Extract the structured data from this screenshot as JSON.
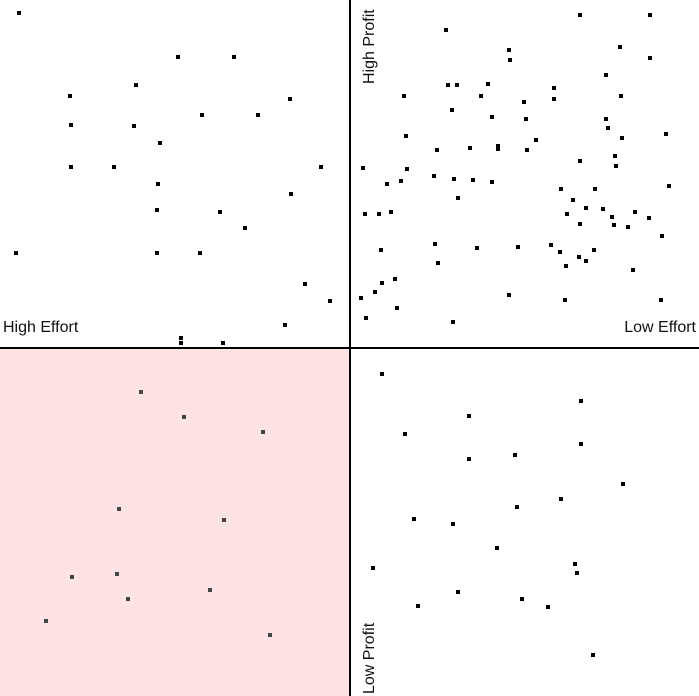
{
  "chart_data": {
    "type": "scatter",
    "x_axis": {
      "left_label": "High Effort",
      "right_label": "Low Effort",
      "xlim": [
        0,
        699
      ]
    },
    "y_axis": {
      "top_label": "High Profit",
      "bottom_label": "Low Profit",
      "ylim": [
        0,
        696
      ]
    },
    "highlighted_quadrant": "bottom-left",
    "colors": {
      "highlight": "#fde3e3",
      "axis": "#000000",
      "marker": "#000000",
      "marker_highlight": "#444444"
    },
    "series": [
      {
        "name": "top-left",
        "points": [
          [
            19,
            683
          ],
          [
            178,
            639
          ],
          [
            234,
            639
          ],
          [
            136,
            611
          ],
          [
            70,
            600
          ],
          [
            290,
            597
          ],
          [
            202,
            581
          ],
          [
            258,
            581
          ],
          [
            71,
            571
          ],
          [
            134,
            570
          ],
          [
            160,
            553
          ],
          [
            71,
            529
          ],
          [
            114,
            529
          ],
          [
            321,
            529
          ],
          [
            158,
            512
          ],
          [
            291,
            502
          ],
          [
            157,
            486
          ],
          [
            220,
            484
          ],
          [
            245,
            468
          ],
          [
            16,
            443
          ],
          [
            157,
            443
          ],
          [
            200,
            443
          ],
          [
            305,
            412
          ],
          [
            330,
            395
          ],
          [
            285,
            371
          ],
          [
            181,
            358
          ],
          [
            181,
            353
          ],
          [
            223,
            353
          ]
        ]
      },
      {
        "name": "top-right",
        "points": [
          [
            580,
            681
          ],
          [
            650,
            681
          ],
          [
            446,
            666
          ],
          [
            620,
            649
          ],
          [
            509,
            646
          ],
          [
            510,
            636
          ],
          [
            650,
            638
          ],
          [
            606,
            621
          ],
          [
            488,
            612
          ],
          [
            448,
            611
          ],
          [
            457,
            611
          ],
          [
            554,
            608
          ],
          [
            404,
            600
          ],
          [
            481,
            600
          ],
          [
            554,
            597
          ],
          [
            621,
            600
          ],
          [
            524,
            594
          ],
          [
            452,
            586
          ],
          [
            492,
            579
          ],
          [
            526,
            577
          ],
          [
            606,
            577
          ],
          [
            608,
            568
          ],
          [
            406,
            560
          ],
          [
            536,
            556
          ],
          [
            622,
            558
          ],
          [
            666,
            562
          ],
          [
            498,
            550
          ],
          [
            470,
            548
          ],
          [
            498,
            547
          ],
          [
            437,
            546
          ],
          [
            527,
            546
          ],
          [
            615,
            540
          ],
          [
            580,
            535
          ],
          [
            616,
            530
          ],
          [
            363,
            528
          ],
          [
            407,
            527
          ],
          [
            434,
            520
          ],
          [
            454,
            517
          ],
          [
            401,
            515
          ],
          [
            473,
            516
          ],
          [
            492,
            514
          ],
          [
            387,
            512
          ],
          [
            669,
            510
          ],
          [
            561,
            507
          ],
          [
            595,
            507
          ],
          [
            458,
            498
          ],
          [
            573,
            496
          ],
          [
            586,
            488
          ],
          [
            603,
            487
          ],
          [
            391,
            484
          ],
          [
            365,
            482
          ],
          [
            379,
            482
          ],
          [
            567,
            482
          ],
          [
            635,
            484
          ],
          [
            612,
            479
          ],
          [
            649,
            478
          ],
          [
            614,
            471
          ],
          [
            580,
            472
          ],
          [
            628,
            469
          ],
          [
            662,
            460
          ],
          [
            435,
            452
          ],
          [
            477,
            448
          ],
          [
            518,
            449
          ],
          [
            551,
            451
          ],
          [
            381,
            446
          ],
          [
            560,
            444
          ],
          [
            594,
            446
          ],
          [
            579,
            439
          ],
          [
            438,
            433
          ],
          [
            586,
            435
          ],
          [
            566,
            430
          ],
          [
            633,
            426
          ],
          [
            395,
            417
          ],
          [
            382,
            413
          ],
          [
            375,
            404
          ],
          [
            361,
            398
          ],
          [
            509,
            401
          ],
          [
            565,
            396
          ],
          [
            661,
            396
          ],
          [
            397,
            388
          ],
          [
            366,
            378
          ],
          [
            453,
            374
          ]
        ]
      },
      {
        "name": "bottom-right",
        "points": [
          [
            382,
            322
          ],
          [
            581,
            295
          ],
          [
            469,
            280
          ],
          [
            405,
            262
          ],
          [
            581,
            252
          ],
          [
            469,
            237
          ],
          [
            515,
            241
          ],
          [
            623,
            212
          ],
          [
            561,
            197
          ],
          [
            517,
            189
          ],
          [
            414,
            177
          ],
          [
            453,
            172
          ],
          [
            497,
            148
          ],
          [
            373,
            128
          ],
          [
            575,
            132
          ],
          [
            577,
            123
          ],
          [
            458,
            104
          ],
          [
            522,
            97
          ],
          [
            418,
            90
          ],
          [
            548,
            89
          ],
          [
            593,
            41
          ]
        ]
      },
      {
        "name": "bottom-left",
        "points": [
          [
            141,
            304
          ],
          [
            184,
            279
          ],
          [
            263,
            264
          ],
          [
            119,
            187
          ],
          [
            224,
            176
          ],
          [
            72,
            119
          ],
          [
            117,
            122
          ],
          [
            210,
            106
          ],
          [
            128,
            97
          ],
          [
            46,
            75
          ],
          [
            270,
            61
          ]
        ]
      }
    ]
  }
}
